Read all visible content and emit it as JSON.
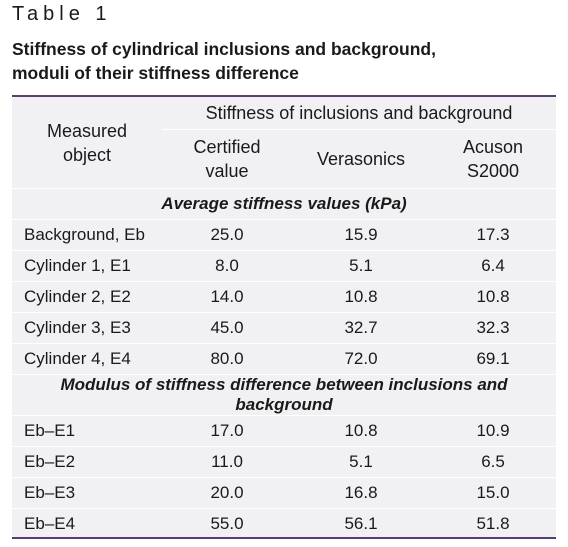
{
  "table_label": "Table 1",
  "caption": {
    "line1": "Stiffness of cylindrical inclusions and background,",
    "line2": "moduli of their stiffness difference"
  },
  "header": {
    "measured_line1": "Measured",
    "measured_line2": "object",
    "group": "Stiffness of inclusions and background",
    "certified_line1": "Certified",
    "certified_line2": "value",
    "verasonics": "Verasonics",
    "acuson_line1": "Acuson",
    "acuson_line2": "S2000"
  },
  "sections": [
    {
      "title": "Average stiffness values (kPa)",
      "rows": [
        {
          "name": "Background, Eb",
          "certified": "25.0",
          "verasonics": "15.9",
          "acuson": "17.3"
        },
        {
          "name": "Cylinder 1, E1",
          "certified": "8.0",
          "verasonics": "5.1",
          "acuson": "6.4"
        },
        {
          "name": "Cylinder 2, E2",
          "certified": "14.0",
          "verasonics": "10.8",
          "acuson": "10.8"
        },
        {
          "name": "Cylinder 3, E3",
          "certified": "45.0",
          "verasonics": "32.7",
          "acuson": "32.3"
        },
        {
          "name": "Cylinder 4, E4",
          "certified": "80.0",
          "verasonics": "72.0",
          "acuson": "69.1"
        }
      ]
    },
    {
      "title": "Modulus of stiffness difference between inclusions and background",
      "rows": [
        {
          "name": "Eb–E1",
          "certified": "17.0",
          "verasonics": "10.8",
          "acuson": "10.9"
        },
        {
          "name": "Eb–E2",
          "certified": "11.0",
          "verasonics": "5.1",
          "acuson": "6.5"
        },
        {
          "name": "Eb–E3",
          "certified": "20.0",
          "verasonics": "16.8",
          "acuson": "15.0"
        },
        {
          "name": "Eb–E4",
          "certified": "55.0",
          "verasonics": "56.1",
          "acuson": "51.8"
        }
      ]
    }
  ]
}
